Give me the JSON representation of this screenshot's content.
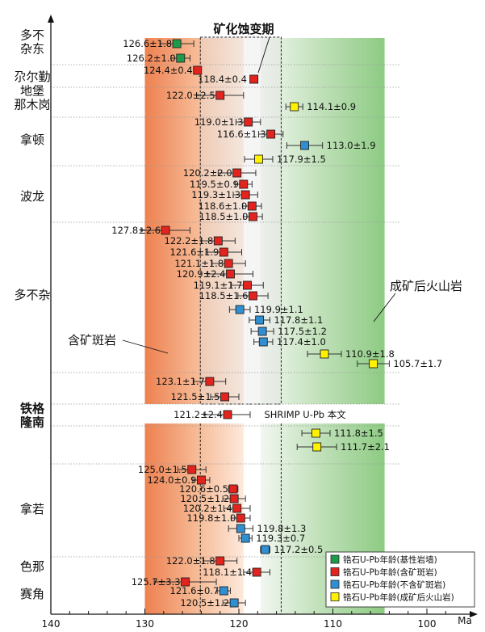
{
  "chart_data": {
    "type": "scatter",
    "title": "",
    "xlabel": "Ma",
    "xlim": [
      140,
      97
    ],
    "x_ticks": [
      140,
      130,
      120,
      110,
      100
    ],
    "colors": {
      "green": "#1e9a4a",
      "red": "#e3231e",
      "blue": "#2f8fd2",
      "yellow": "#fff200"
    },
    "groups": [
      {
        "name": "多不杂东",
        "lines": [
          "多不",
          "杂东"
        ],
        "bold": false
      },
      {
        "name": "尕尔勤",
        "lines": [
          "尕尔勤"
        ],
        "bold": false
      },
      {
        "name": "地堡那木岗",
        "lines": [
          "地堡",
          "那木岗"
        ],
        "bold": false
      },
      {
        "name": "拿顿",
        "lines": [
          "拿顿"
        ],
        "bold": false
      },
      {
        "name": "波龙",
        "lines": [
          "波龙"
        ],
        "bold": false
      },
      {
        "name": "多不杂",
        "lines": [
          "多不杂"
        ],
        "bold": false
      },
      {
        "name": "铁格隆南",
        "lines": [
          "铁格",
          "隆南"
        ],
        "bold": true
      },
      {
        "name": "拿若",
        "lines": [
          "拿若"
        ],
        "bold": false
      },
      {
        "name": "色那",
        "lines": [
          "色那"
        ],
        "bold": false
      },
      {
        "name": "赛角",
        "lines": [
          "赛角"
        ],
        "bold": false
      }
    ],
    "points": [
      {
        "group": "多不杂东",
        "age": 126.6,
        "err": 1.8,
        "label": "126.6±1.8",
        "type": "green"
      },
      {
        "group": "多不杂东",
        "age": 126.2,
        "err": 1.0,
        "label": "126.2±1.0",
        "type": "green"
      },
      {
        "group": "尕尔勤",
        "age": 124.4,
        "err": 0.4,
        "label": "124.4±0.4",
        "type": "red"
      },
      {
        "group": "尕尔勤",
        "age": 118.4,
        "err": 0.4,
        "label": "118.4±0.4",
        "type": "red"
      },
      {
        "group": "地堡那木岗",
        "age": 122.0,
        "err": 2.5,
        "label": "122.0±2.5",
        "type": "red"
      },
      {
        "group": "地堡那木岗",
        "age": 114.1,
        "err": 0.9,
        "label": "114.1±0.9",
        "type": "yellow"
      },
      {
        "group": "拿顿",
        "age": 119.0,
        "err": 1.3,
        "label": "119.0±1.3",
        "type": "red"
      },
      {
        "group": "拿顿",
        "age": 116.6,
        "err": 1.3,
        "label": "116.6±1.3",
        "type": "red"
      },
      {
        "group": "拿顿",
        "age": 113.0,
        "err": 1.9,
        "label": "113.0±1.9",
        "type": "blue"
      },
      {
        "group": "拿顿",
        "age": 117.9,
        "err": 1.5,
        "label": "117.9±1.5",
        "type": "yellow"
      },
      {
        "group": "波龙",
        "age": 120.2,
        "err": 2.0,
        "label": "120.2±2.0",
        "type": "red"
      },
      {
        "group": "波龙",
        "age": 119.5,
        "err": 0.9,
        "label": "119.5±0.9",
        "type": "red"
      },
      {
        "group": "波龙",
        "age": 119.3,
        "err": 1.3,
        "label": "119.3±1.3",
        "type": "red"
      },
      {
        "group": "波龙",
        "age": 118.6,
        "err": 1.0,
        "label": "118.6±1.0",
        "type": "red"
      },
      {
        "group": "波龙",
        "age": 118.5,
        "err": 1.0,
        "label": "118.5±1.0",
        "type": "red"
      },
      {
        "group": "多不杂",
        "age": 127.8,
        "err": 2.6,
        "label": "127.8±2.6",
        "type": "red"
      },
      {
        "group": "多不杂",
        "age": 122.2,
        "err": 1.8,
        "label": "122.2±1.8",
        "type": "red"
      },
      {
        "group": "多不杂",
        "age": 121.6,
        "err": 1.9,
        "label": "121.6±1.9",
        "type": "red"
      },
      {
        "group": "多不杂",
        "age": 121.1,
        "err": 1.8,
        "label": "121.1±1.8",
        "type": "red"
      },
      {
        "group": "多不杂",
        "age": 120.9,
        "err": 2.4,
        "label": "120.9±2.4",
        "type": "red"
      },
      {
        "group": "多不杂",
        "age": 119.1,
        "err": 1.7,
        "label": "119.1±1.7",
        "type": "red"
      },
      {
        "group": "多不杂",
        "age": 118.5,
        "err": 1.6,
        "label": "118.5±1.6",
        "type": "red"
      },
      {
        "group": "多不杂",
        "age": 119.9,
        "err": 1.1,
        "label": "119.9±1.1",
        "type": "blue"
      },
      {
        "group": "多不杂",
        "age": 117.8,
        "err": 1.1,
        "label": "117.8±1.1",
        "type": "blue"
      },
      {
        "group": "多不杂",
        "age": 117.5,
        "err": 1.2,
        "label": "117.5±1.2",
        "type": "blue"
      },
      {
        "group": "多不杂",
        "age": 117.4,
        "err": 1.0,
        "label": "117.4±1.0",
        "type": "blue"
      },
      {
        "group": "多不杂",
        "age": 110.9,
        "err": 1.8,
        "label": "110.9±1.8",
        "type": "yellow"
      },
      {
        "group": "多不杂",
        "age": 105.7,
        "err": 1.7,
        "label": "105.7±1.7",
        "type": "yellow"
      },
      {
        "group": "多不杂",
        "age": 123.1,
        "err": 1.7,
        "label": "123.1±1.7",
        "type": "red"
      },
      {
        "group": "多不杂",
        "age": 121.5,
        "err": 1.5,
        "label": "121.5±1.5",
        "type": "red"
      },
      {
        "group": "铁格隆南",
        "age": 121.2,
        "err": 2.4,
        "label": "121.2±2.4",
        "type": "red"
      },
      {
        "group": "铁格隆南",
        "age": 111.8,
        "err": 1.5,
        "label": "111.8±1.5",
        "type": "yellow"
      },
      {
        "group": "铁格隆南",
        "age": 111.7,
        "err": 2.1,
        "label": "111.7±2.1",
        "type": "yellow"
      },
      {
        "group": "拿若",
        "age": 125.0,
        "err": 1.5,
        "label": "125.0±1.5",
        "type": "red"
      },
      {
        "group": "拿若",
        "age": 124.0,
        "err": 0.9,
        "label": "124.0±0.9",
        "type": "red"
      },
      {
        "group": "拿若",
        "age": 120.6,
        "err": 0.5,
        "label": "120.6±0.5",
        "type": "red"
      },
      {
        "group": "拿若",
        "age": 120.5,
        "err": 1.2,
        "label": "120.5±1.2",
        "type": "red"
      },
      {
        "group": "拿若",
        "age": 120.2,
        "err": 1.4,
        "label": "120.2±1.4",
        "type": "red"
      },
      {
        "group": "拿若",
        "age": 119.8,
        "err": 1.0,
        "label": "119.8±1.0",
        "type": "red"
      },
      {
        "group": "拿若",
        "age": 119.8,
        "err": 1.3,
        "label": "119.8±1.3",
        "type": "blue"
      },
      {
        "group": "拿若",
        "age": 119.3,
        "err": 0.7,
        "label": "119.3±0.7",
        "type": "blue"
      },
      {
        "group": "拿若",
        "age": 117.2,
        "err": 0.5,
        "label": "117.2±0.5",
        "type": "blue"
      },
      {
        "group": "色那",
        "age": 122.0,
        "err": 1.8,
        "label": "122.0±1.8",
        "type": "red"
      },
      {
        "group": "色那",
        "age": 118.1,
        "err": 1.4,
        "label": "118.1±1.4",
        "type": "red"
      },
      {
        "group": "赛角",
        "age": 125.7,
        "err": 3.3,
        "label": "125.7±3.3",
        "type": "red"
      },
      {
        "group": "赛角",
        "age": 121.6,
        "err": 0.7,
        "label": "121.6±0.7",
        "type": "blue"
      },
      {
        "group": "赛角",
        "age": 120.5,
        "err": 1.2,
        "label": "120.5±1.2",
        "type": "blue"
      }
    ],
    "shrimp_note": "SHRIMP U-Pb 本文",
    "zones": {
      "ore_porphyry": {
        "from": 130,
        "to": 119.5,
        "color": "#ef8a55"
      },
      "post_ore_volcanic": {
        "from": 117.7,
        "to": 104.5,
        "color": "#8fcc84"
      },
      "mineralization_period": {
        "from": 124.1,
        "to": 115.5
      }
    },
    "annotations": {
      "mineralization": "矿化蚀变期",
      "ore_porphyry": "含矿斑岩",
      "post_ore_volcanic": "成矿后火山岩"
    },
    "legend": [
      {
        "type": "green",
        "label": "锆石U-Pb年龄(基性岩墙)"
      },
      {
        "type": "red",
        "label": "锆石U-Pb年龄(含矿斑岩)"
      },
      {
        "type": "blue",
        "label": "锆石U-Pb年龄(不含矿斑岩)"
      },
      {
        "type": "yellow",
        "label": "锆石U-Pb年龄(成矿后火山岩)"
      }
    ]
  }
}
